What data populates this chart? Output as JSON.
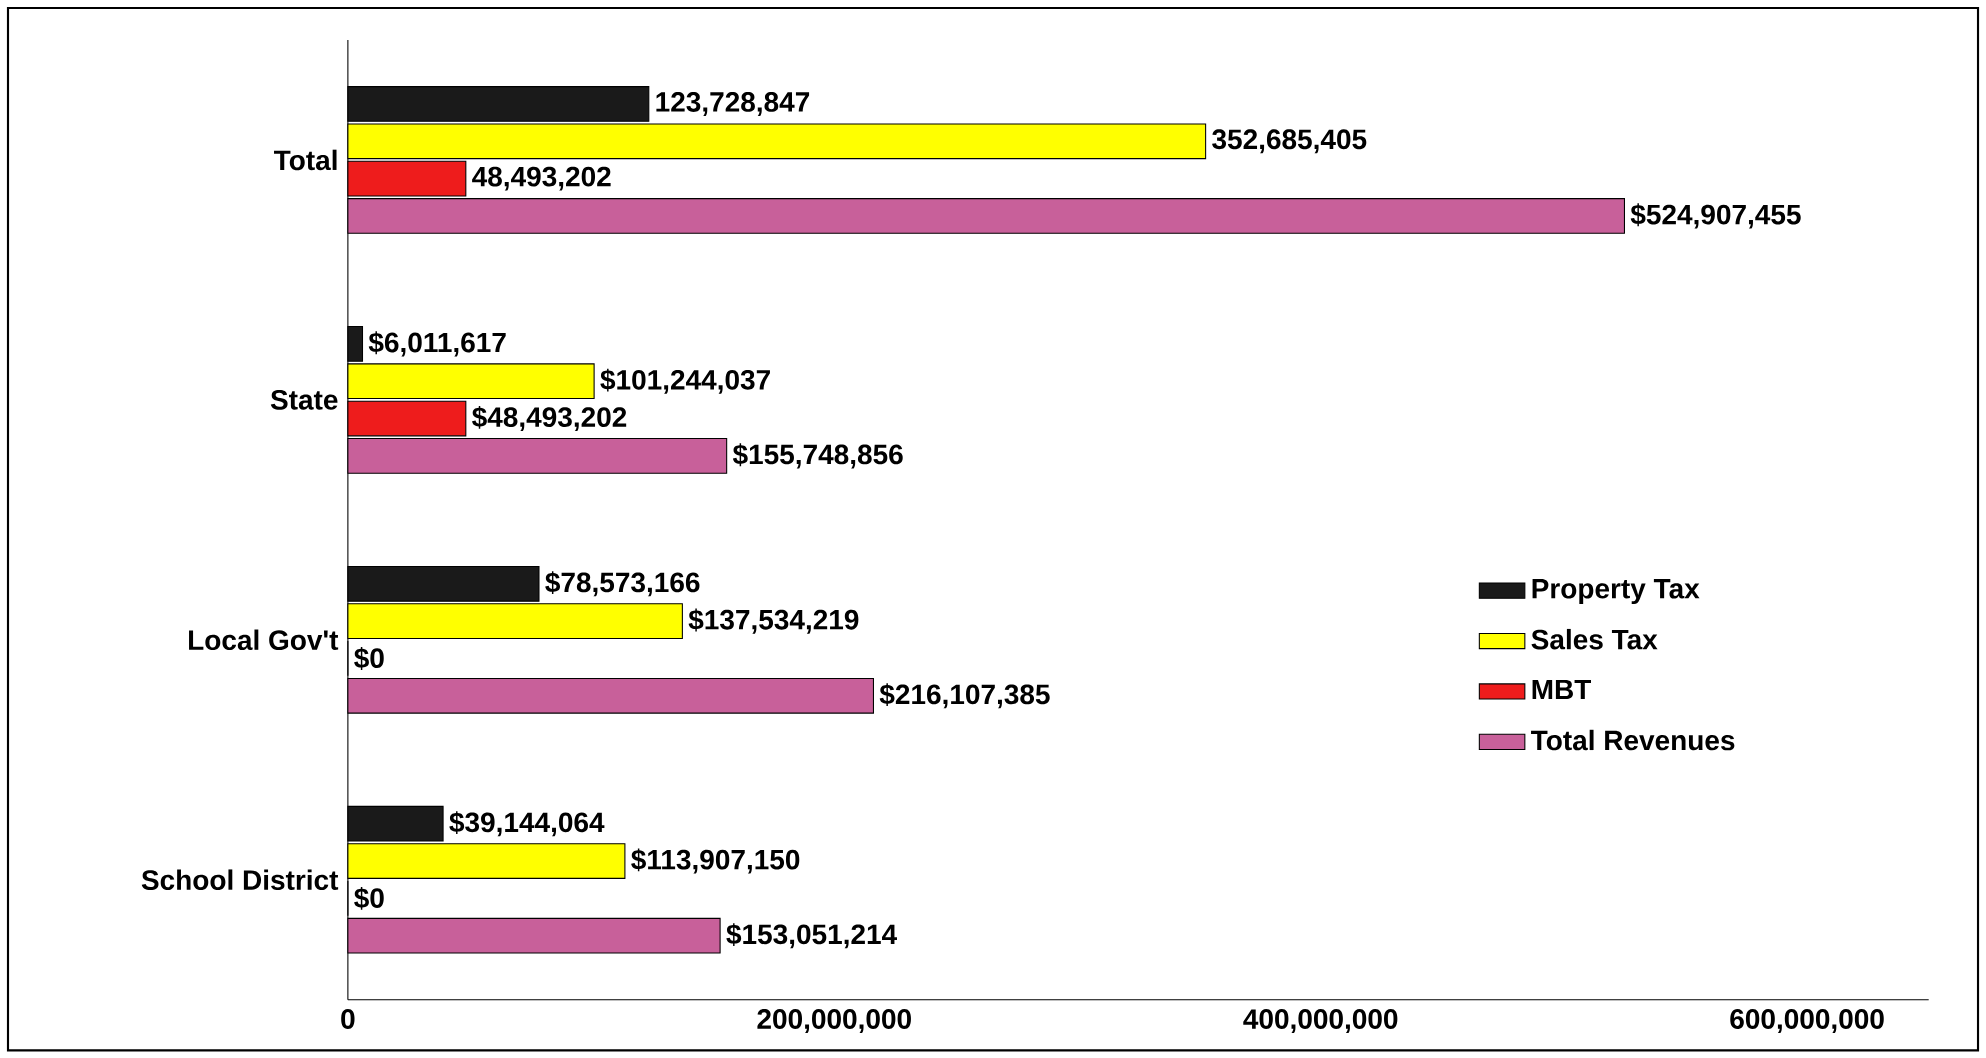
{
  "chart_data": {
    "type": "bar",
    "orientation": "horizontal",
    "categories": [
      "Total",
      "State",
      "Local Gov't",
      "School District"
    ],
    "series": [
      {
        "name": "Property Tax",
        "color": "#1a1a1a",
        "values": [
          123728847,
          6011617,
          78573166,
          39144064
        ],
        "value_labels": [
          "123,728,847",
          "$6,011,617",
          "$78,573,166",
          "$39,144,064"
        ]
      },
      {
        "name": "Sales Tax",
        "color": "#ffff00",
        "values": [
          352685405,
          101244037,
          137534219,
          113907150
        ],
        "value_labels": [
          "352,685,405",
          "$101,244,037",
          "$137,534,219",
          "$113,907,150"
        ]
      },
      {
        "name": "MBT",
        "color": "#ee1c1c",
        "values": [
          48493202,
          48493202,
          0,
          0
        ],
        "value_labels": [
          "48,493,202",
          "$48,493,202",
          "$0",
          "$0"
        ]
      },
      {
        "name": "Total Revenues",
        "color": "#c8609a",
        "values": [
          524907455,
          155748856,
          216107385,
          153051214
        ],
        "value_labels": [
          "$524,907,455",
          "$155,748,856",
          "$216,107,385",
          "$153,051,214"
        ]
      }
    ],
    "xlim": [
      0,
      650000000
    ],
    "xticks": [
      0,
      {
        "value": 200000000,
        "label": "200,000,000"
      },
      {
        "value": 400000000,
        "label": "400,000,000"
      },
      {
        "value": 600000000,
        "label": "600,000,000"
      }
    ],
    "grid": false,
    "legend": "right"
  }
}
